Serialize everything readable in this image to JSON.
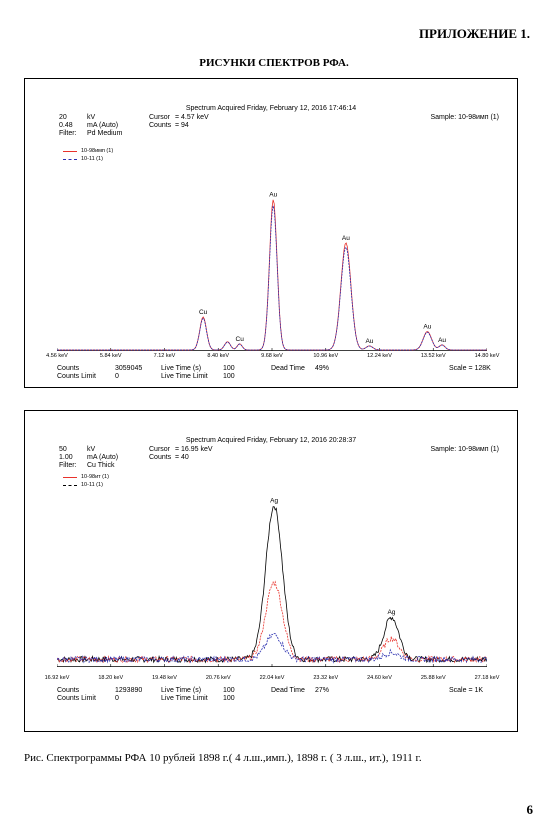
{
  "page": {
    "appendix_label": "ПРИЛОЖЕНИЕ 1.",
    "section_title": "РИСУНКИ СПЕКТРОВ РФА.",
    "caption": "Рис. Спектрограммы РФА 10 рублей 1898 г.( 4 л.ш.,имп.), 1898 г. ( 3 л.ш., ит.), 1911 г.",
    "page_number": "6"
  },
  "spectra": [
    {
      "acquired": "Spectrum Acquired  Friday, February 12, 2016 17:46:14",
      "sample": "Sample: 10-98имп (1)",
      "kv": "20",
      "kv_unit": "kV",
      "ma": "0.48",
      "ma_unit": "mA (Auto)",
      "filter_label": "Filter:",
      "filter": "Pd Medium",
      "cursor_label": "Cursor",
      "cursor_value": "= 4.57 keV",
      "counts_label": "Counts",
      "counts_value": "= 94",
      "legend": [
        "10-98имп (1)",
        "10-11 (1)"
      ],
      "footer": {
        "counts_label": "Counts",
        "counts": "3059045",
        "live_time_label": "Live Time (s)",
        "live_time": "100",
        "dead_time_label": "Dead Time",
        "dead_time": "49%",
        "scale": "Scale = 128K",
        "counts_limit_label": "Counts Limit",
        "counts_limit": "0",
        "live_time_limit_label": "Live Time Limit",
        "live_time_limit": "100"
      }
    },
    {
      "acquired": "Spectrum Acquired  Friday, February 12, 2016 20:28:37",
      "sample": "Sample: 10-98имп (1)",
      "kv": "50",
      "kv_unit": "kV",
      "ma": "1.00",
      "ma_unit": "mA (Auto)",
      "filter_label": "Filter:",
      "filter": "Cu Thick",
      "cursor_label": "Cursor",
      "cursor_value": "= 16.95 keV",
      "counts_label": "Counts",
      "counts_value": "= 40",
      "legend": [
        "10-98ит (1)",
        "10-11 (1)"
      ],
      "footer": {
        "counts_label": "Counts",
        "counts": "1293890",
        "live_time_label": "Live Time (s)",
        "live_time": "100",
        "dead_time_label": "Dead Time",
        "dead_time": "27%",
        "scale": "Scale = 1K",
        "counts_limit_label": "Counts Limit",
        "counts_limit": "0",
        "live_time_limit_label": "Live Time Limit",
        "live_time_limit": "100"
      }
    }
  ],
  "chart_data": [
    {
      "type": "line",
      "xlim": [
        4.56,
        14.8
      ],
      "ylim": [
        0,
        100
      ],
      "x_ticks": [
        "4.56 keV",
        "5.84 keV",
        "7.12 keV",
        "8.40 keV",
        "9.68 keV",
        "10.96 keV",
        "12.24 keV",
        "13.52 keV",
        "14.80 keV"
      ],
      "colors": [
        "#e8322c",
        "#2a2fb0"
      ],
      "peaks": [
        {
          "label": "Cu",
          "x": 8.04,
          "h": 16,
          "w": 0.08
        },
        {
          "label": "",
          "x": 8.62,
          "h": 4,
          "w": 0.07
        },
        {
          "label": "Cu",
          "x": 8.91,
          "h": 3,
          "w": 0.06
        },
        {
          "label": "Au",
          "x": 9.71,
          "h": 73,
          "w": 0.09
        },
        {
          "label": "Au",
          "x": 11.44,
          "h": 52,
          "w": 0.12
        },
        {
          "label": "Au",
          "x": 12.0,
          "h": 2,
          "w": 0.08
        },
        {
          "label": "Au",
          "x": 13.38,
          "h": 9,
          "w": 0.1
        },
        {
          "label": "Au",
          "x": 13.73,
          "h": 2.5,
          "w": 0.07
        }
      ],
      "series2_scale": 0.96,
      "noise": 0
    },
    {
      "type": "line",
      "xlim": [
        16.92,
        27.18
      ],
      "ylim": [
        0,
        100
      ],
      "x_ticks": [
        "16.92 keV",
        "18.20 keV",
        "19.48 keV",
        "20.76 keV",
        "22.04 keV",
        "23.32 keV",
        "24.60 keV",
        "25.88 keV",
        "27.18 keV"
      ],
      "colors": [
        "#000000",
        "#e8322c",
        "#2a2fb0"
      ],
      "peaks": [
        {
          "label": "Ag",
          "x": 22.1,
          "h": 80,
          "w": 0.2
        },
        {
          "label": "Ag",
          "x": 24.9,
          "h": 22,
          "w": 0.18
        }
      ],
      "series_scales": [
        1,
        0.5,
        0.16
      ],
      "baseline": 4,
      "noise": 3
    }
  ]
}
